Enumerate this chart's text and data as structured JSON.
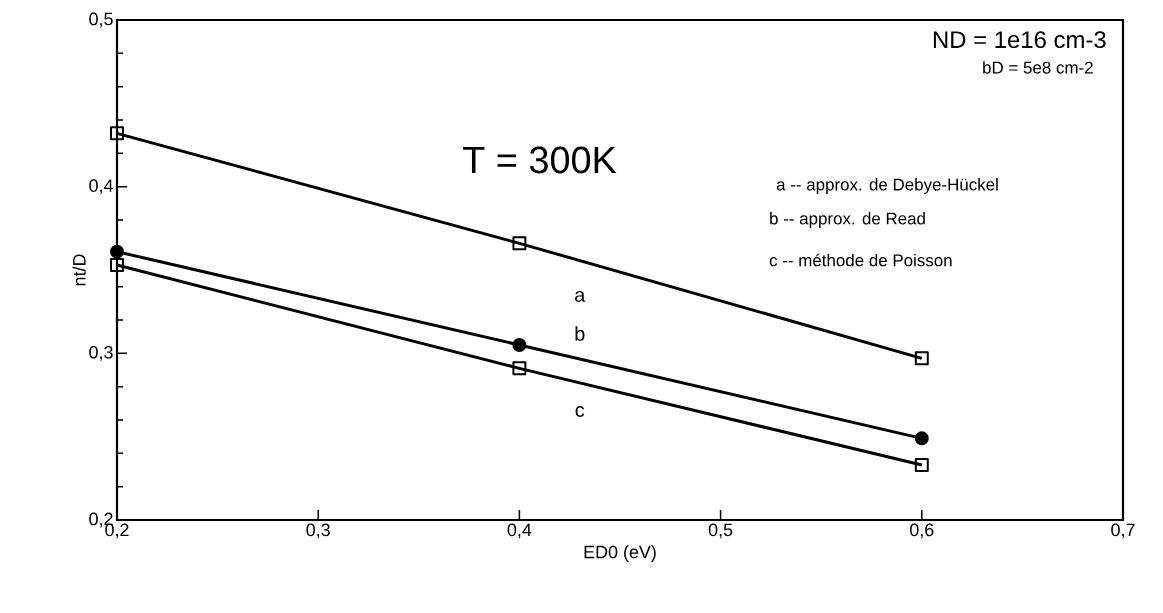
{
  "chart_data": {
    "type": "line",
    "xlabel": "ED0 (eV)",
    "ylabel": "nt/D",
    "x": [
      0.2,
      0.4,
      0.6
    ],
    "series": [
      {
        "color": "#000000",
        "marker": "square",
        "values": [
          0.432,
          0.366,
          0.297
        ]
      },
      {
        "color": "#000000",
        "marker": "circle",
        "values": [
          0.361,
          0.305,
          0.249
        ]
      },
      {
        "color": "#000000",
        "marker": "square",
        "values": [
          0.353,
          0.291,
          0.233
        ]
      }
    ],
    "xlim": [
      0.2,
      0.7
    ],
    "ylim": [
      0.2,
      0.5
    ],
    "xticks": [
      {
        "value": 0.2,
        "label": "0,2"
      },
      {
        "value": 0.3,
        "label": "0,3"
      },
      {
        "value": 0.4,
        "label": "0,4"
      },
      {
        "value": 0.5,
        "label": "0,5"
      },
      {
        "value": 0.6,
        "label": "0,6"
      },
      {
        "value": 0.7,
        "label": "0,7"
      }
    ],
    "yticks": [
      {
        "value": 0.2,
        "label": "0,2"
      },
      {
        "value": 0.3,
        "label": "0,3"
      },
      {
        "value": 0.4,
        "label": "0,4"
      },
      {
        "value": 0.5,
        "label": "0,5"
      }
    ],
    "grid": false,
    "line_style": "solid",
    "annotations": [
      "a",
      "b",
      "c",
      "T = 300K",
      "ND = 1e16 cm-3",
      "bD = 5e8 cm-2",
      "a -- approx. de Debye-Hückel",
      "b -- approx. de Read",
      "c -- méthode de Poisson"
    ]
  }
}
